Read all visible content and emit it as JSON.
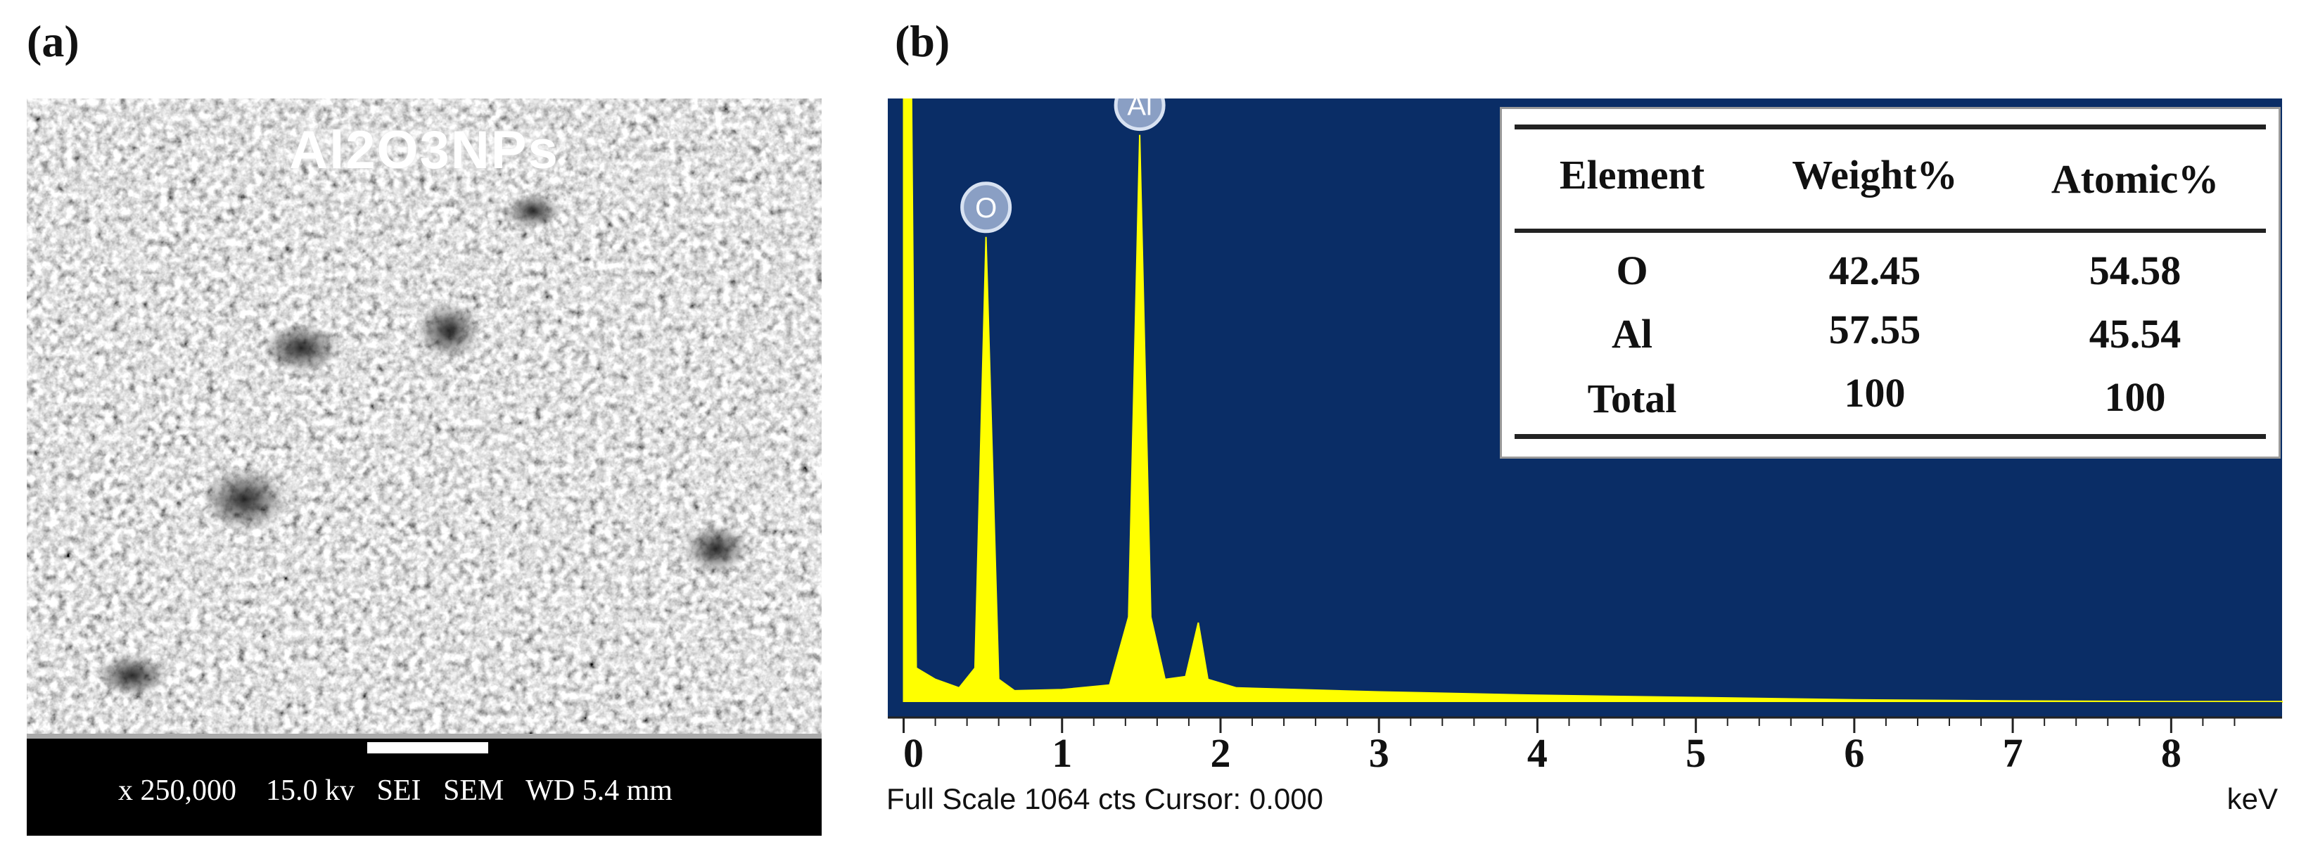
{
  "panel_labels": {
    "a": "(a)",
    "b": "(b)"
  },
  "sem": {
    "title": "Al2O3NPs",
    "info": "x 250,000    15.0 kv   SEI   SEM   WD 5.4 mm"
  },
  "eds": {
    "status": "Full Scale 1064 cts Cursor: 0.000",
    "unit": "keV",
    "table": {
      "headers": [
        "Element",
        "Weight%",
        "Atomic%"
      ],
      "rows": [
        [
          "O",
          "42.45",
          "54.58"
        ],
        [
          "Al",
          "57.55",
          "45.54"
        ],
        [
          "Total",
          "100",
          "100"
        ]
      ]
    }
  },
  "chart_data": {
    "type": "line",
    "title": "",
    "xlabel": "keV",
    "ylabel": "",
    "xlim": [
      -0.1,
      8.7
    ],
    "ylim": [
      0,
      1064
    ],
    "x_ticks": [
      0,
      1,
      2,
      3,
      4,
      5,
      6,
      7,
      8
    ],
    "background_color": "#0a2d66",
    "line_color": "#ffff00",
    "full_scale_cts": 1064,
    "peaks": [
      {
        "label": "O",
        "x": 0.52,
        "y": 820
      },
      {
        "label": "Al",
        "x": 1.49,
        "y": 1000
      }
    ],
    "series": [
      {
        "values": [
          [
            0.0,
            1064
          ],
          [
            0.05,
            1064
          ],
          [
            0.08,
            60
          ],
          [
            0.2,
            40
          ],
          [
            0.35,
            25
          ],
          [
            0.45,
            60
          ],
          [
            0.52,
            820
          ],
          [
            0.6,
            40
          ],
          [
            0.7,
            20
          ],
          [
            1.0,
            22
          ],
          [
            1.3,
            30
          ],
          [
            1.42,
            150
          ],
          [
            1.49,
            1000
          ],
          [
            1.56,
            150
          ],
          [
            1.65,
            40
          ],
          [
            1.78,
            45
          ],
          [
            1.86,
            140
          ],
          [
            1.92,
            40
          ],
          [
            2.1,
            25
          ],
          [
            3.0,
            18
          ],
          [
            4.0,
            12
          ],
          [
            5.0,
            8
          ],
          [
            6.0,
            4
          ],
          [
            7.0,
            2
          ],
          [
            8.0,
            1
          ],
          [
            8.7,
            1
          ]
        ]
      }
    ],
    "table": {
      "headers": [
        "Element",
        "Weight%",
        "Atomic%"
      ],
      "rows": [
        [
          "O",
          42.45,
          54.58
        ],
        [
          "Al",
          57.55,
          45.54
        ],
        [
          "Total",
          100,
          100
        ]
      ]
    }
  }
}
